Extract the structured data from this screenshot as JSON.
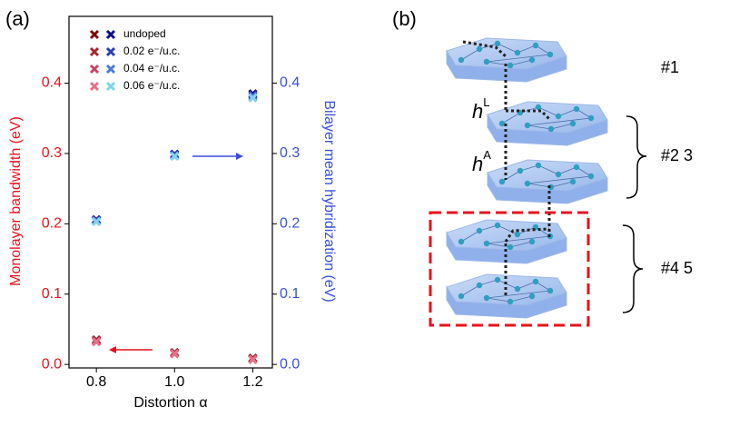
{
  "chart_data": {
    "type": "scatter",
    "panel_label": "(a)",
    "xlabel": "Distortion α",
    "ylabel": "Monolayer bandwidth (eV)",
    "y2label": "Bilayer mean hybridization (eV)",
    "x": [
      0.8,
      1.0,
      1.2
    ],
    "xlim": [
      0.73,
      1.25
    ],
    "xticks": [
      0.8,
      {
        "value": 1.0,
        "label": "1.0"
      },
      1.2
    ],
    "ylim": [
      -0.005,
      0.495
    ],
    "yticks": [
      {
        "value": 0,
        "label": "0.0"
      },
      0.1,
      0.2,
      0.3,
      0.4
    ],
    "y2lim": [
      -0.005,
      0.495
    ],
    "y2ticks": [
      {
        "value": 0,
        "label": "0.0"
      },
      0.1,
      0.2,
      0.3,
      0.4
    ],
    "ycolor": "#e8121c",
    "y2color": "#3a4fe0",
    "series": [
      {
        "name": "undoped",
        "color": "#7a0a0a",
        "values": [
          0.035,
          0.017,
          0.009
        ]
      },
      {
        "name": "0.02 e⁻/u.c.",
        "color": "#a8262e",
        "values": [
          0.034,
          0.016,
          0.008
        ]
      },
      {
        "name": "0.04 e⁻/u.c.",
        "color": "#c4456a",
        "values": [
          0.033,
          0.016,
          0.007
        ]
      },
      {
        "name": "0.06 e⁻/u.c.",
        "color": "#e8708a",
        "values": [
          0.032,
          0.015,
          0.007
        ]
      },
      {
        "name": "undoped",
        "color": "#0a0a8a",
        "axis": "y2",
        "values": [
          0.206,
          0.299,
          0.385
        ]
      },
      {
        "name": "0.02 e⁻/u.c.",
        "color": "#2a3fbf",
        "axis": "y2",
        "values": [
          0.205,
          0.298,
          0.383
        ]
      },
      {
        "name": "0.04 e⁻/u.c.",
        "color": "#4a79d9",
        "axis": "y2",
        "values": [
          0.204,
          0.297,
          0.381
        ]
      },
      {
        "name": "0.06 e⁻/u.c.",
        "color": "#7fd4f0",
        "axis": "y2",
        "values": [
          0.203,
          0.296,
          0.379
        ]
      }
    ]
  },
  "diagram": {
    "panel_label": "(b)",
    "h_base": "h",
    "hL_sup": "L",
    "hA_sup": "A",
    "groups": [
      "#1",
      "#2 3",
      "#4 5"
    ]
  }
}
